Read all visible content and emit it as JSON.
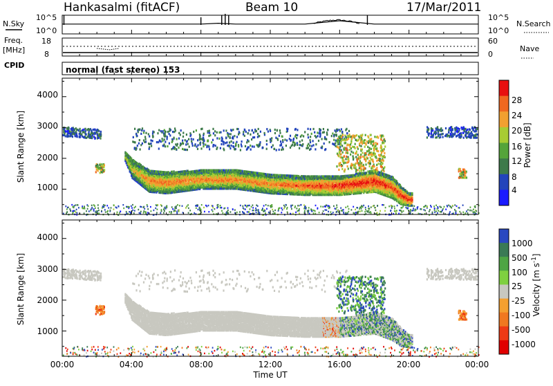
{
  "header": {
    "station": "Hankasalmi (fitACF)",
    "beam": "Beam 10",
    "date": "17/Mar/2011"
  },
  "strips": {
    "nsky_label": "N.Sky",
    "nsky_ticks": [
      "10^5",
      "10^0"
    ],
    "nsearch_label": "N.Search",
    "nsearch_ticks": [
      "10^5",
      "10^0"
    ],
    "freq_label_1": "Freq.",
    "freq_label_2": "[MHz]",
    "freq_ticks": [
      "18",
      "8"
    ],
    "nave_label": "Nave",
    "nave_ticks": [
      "60",
      "0"
    ],
    "cpid_label": "CPID",
    "cpid_text": "normal (fast stereo) 153"
  },
  "power_panel": {
    "ylabel": "Slant Range [km]",
    "yticks": [
      "1000",
      "2000",
      "3000",
      "4000"
    ],
    "colorbar_label": "Power [dB]",
    "colorbar_ticks": [
      "4",
      "8",
      "12",
      "16",
      "20",
      "24",
      "28"
    ]
  },
  "velocity_panel": {
    "ylabel": "Slant Range [km]",
    "yticks": [
      "1000",
      "2000",
      "3000",
      "4000"
    ],
    "colorbar_label": "Velocity [m s",
    "colorbar_label_exp": "-1",
    "colorbar_label_end": "]",
    "colorbar_ticks": [
      "1000",
      "500",
      "100",
      "25",
      "-25",
      "-100",
      "-500",
      "-1000"
    ]
  },
  "xaxis": {
    "label": "Time UT",
    "ticks": [
      "00:00",
      "04:00",
      "08:00",
      "12:00",
      "16:00",
      "20:00",
      "00:00"
    ]
  },
  "colors": {
    "power_scale": [
      "#1a1aff",
      "#2244bb",
      "#3d7a4a",
      "#55a43a",
      "#a8cc33",
      "#f2a030",
      "#f06820",
      "#e81010"
    ],
    "velocity_scale": [
      "#2a48c0",
      "#3a7a55",
      "#4ea544",
      "#7fd040",
      "#c8c8c0",
      "#f4a030",
      "#f07820",
      "#ee3a15",
      "#e00000"
    ]
  },
  "chart_data": [
    {
      "type": "line",
      "title": "N.Sky",
      "x": [
        0,
        2,
        4,
        6,
        8,
        9,
        10,
        12,
        14,
        15,
        16,
        17,
        18,
        20,
        22,
        24
      ],
      "y": [
        1,
        1,
        1,
        1,
        1,
        2,
        1,
        1,
        1,
        3,
        5,
        3,
        1,
        1,
        1,
        1
      ],
      "xlim": [
        0,
        24
      ]
    },
    {
      "type": "heatmap",
      "title": "Power [dB]",
      "ylabel": "Slant Range [km]",
      "xlabel": "Time UT",
      "xlim": [
        0,
        24
      ],
      "ylim": [
        180,
        4600
      ],
      "clim": [
        0,
        30
      ],
      "bands": [
        {
          "t": [
            3.6,
            4,
            5,
            6,
            8,
            10,
            12,
            14,
            16,
            18,
            19,
            19.5,
            20
          ],
          "center": [
            2100,
            1700,
            1300,
            1250,
            1350,
            1350,
            1200,
            1150,
            1150,
            1300,
            1100,
            850,
            700
          ],
          "width": [
            150,
            300,
            350,
            350,
            300,
            300,
            300,
            300,
            300,
            350,
            350,
            300,
            200
          ],
          "value": [
            18,
            20,
            24,
            24,
            24,
            24,
            24,
            26,
            28,
            29,
            26,
            28,
            28
          ]
        }
      ]
    },
    {
      "type": "heatmap",
      "title": "Velocity [m s-1]",
      "ylabel": "Slant Range [km]",
      "xlabel": "Time UT",
      "xlim": [
        0,
        24
      ],
      "ylim": [
        180,
        4600
      ],
      "clim": [
        -1000,
        1000
      ]
    }
  ]
}
